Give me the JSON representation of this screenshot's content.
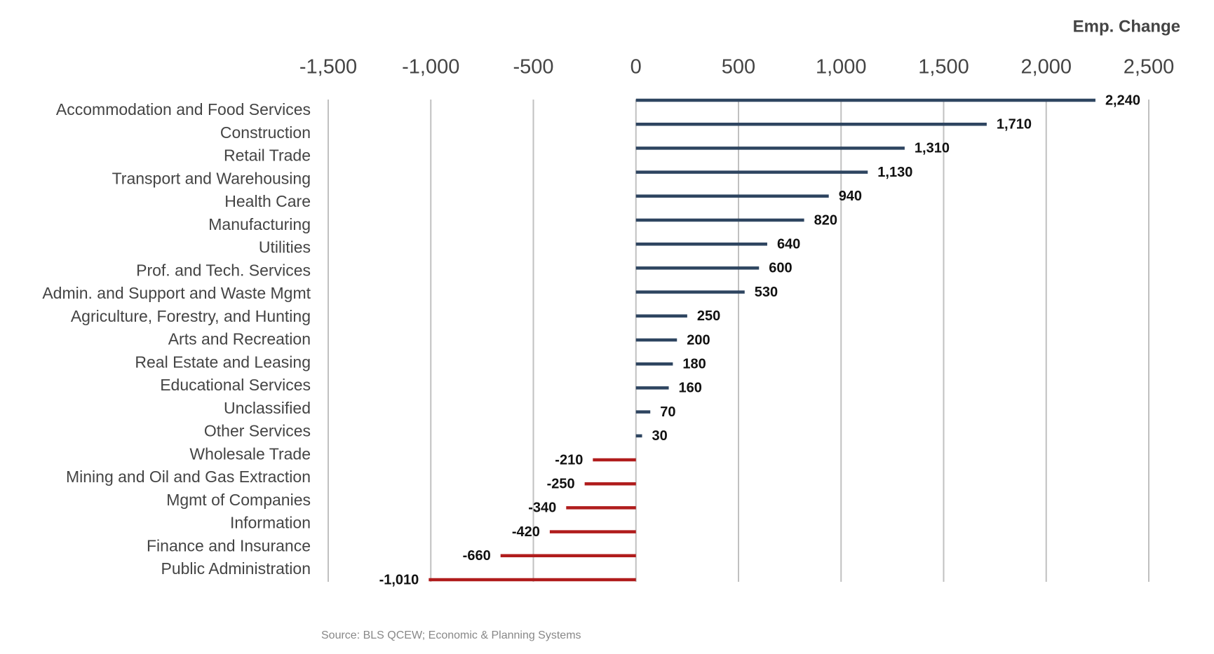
{
  "chart_data": {
    "type": "bar",
    "orientation": "horizontal",
    "title": "Emp. Change",
    "source": "Source: BLS QCEW; Economic & Planning Systems",
    "categories": [
      "Accommodation and Food Services",
      "Construction",
      "Retail Trade",
      "Transport and Warehousing",
      "Health Care",
      "Manufacturing",
      "Utilities",
      "Prof. and Tech. Services",
      "Admin. and Support and Waste Mgmt",
      "Agriculture, Forestry, and Hunting",
      "Arts and Recreation",
      "Real Estate and Leasing",
      "Educational Services",
      "Unclassified",
      "Other Services",
      "Wholesale Trade",
      "Mining and Oil and Gas Extraction",
      "Mgmt of Companies",
      "Information",
      "Finance and Insurance",
      "Public Administration"
    ],
    "values": [
      2240,
      1710,
      1310,
      1130,
      940,
      820,
      640,
      600,
      530,
      250,
      200,
      180,
      160,
      70,
      30,
      -210,
      -250,
      -340,
      -420,
      -660,
      -1010
    ],
    "value_labels": [
      "2,240",
      "1,710",
      "1,310",
      "1,130",
      "940",
      "820",
      "640",
      "600",
      "530",
      "250",
      "200",
      "180",
      "160",
      "70",
      "30",
      "-210",
      "-250",
      "-340",
      "-420",
      "-660",
      "-1,010"
    ],
    "color": "#2e4560",
    "negative_color": "#b01c1c",
    "xlim": [
      -1500,
      2500
    ],
    "xticks": [
      {
        "value": -1500,
        "label": "-1,500"
      },
      {
        "value": -1000,
        "label": "-1,000"
      },
      {
        "value": -500,
        "label": "-500"
      },
      0,
      500,
      {
        "value": 1000,
        "label": "1,000"
      },
      {
        "value": 1500,
        "label": "1,500"
      },
      {
        "value": 2000,
        "label": "2,000"
      },
      {
        "value": 2500,
        "label": "2,500"
      }
    ],
    "grid": true
  }
}
